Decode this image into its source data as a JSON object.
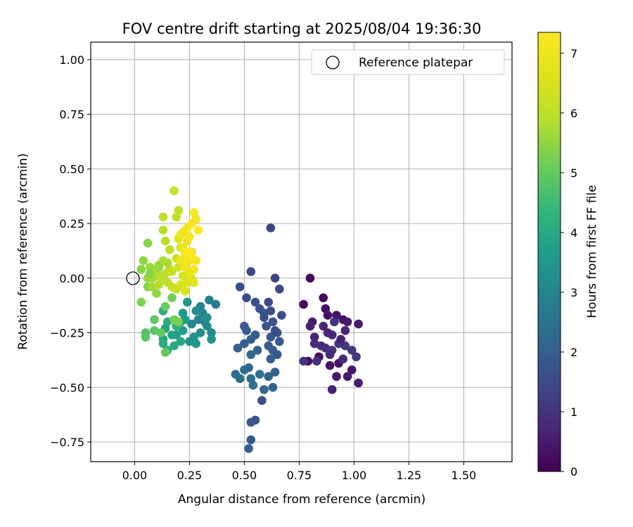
{
  "chart_data": {
    "type": "scatter",
    "title": "FOV centre drift starting at 2025/08/04 19:36:30",
    "xlabel": "Angular distance from reference (arcmin)",
    "ylabel": "Rotation from reference (arcmin)",
    "xlim": [
      -0.2,
      1.72
    ],
    "ylim": [
      -0.84,
      1.08
    ],
    "x_ticks": [
      0.0,
      0.25,
      0.5,
      0.75,
      1.0,
      1.25,
      1.5
    ],
    "x_tick_labels": [
      "0.00",
      "0.25",
      "0.50",
      "0.75",
      "1.00",
      "1.25",
      "1.50"
    ],
    "y_ticks": [
      1.0,
      0.75,
      0.5,
      0.25,
      0.0,
      -0.25,
      -0.5,
      -0.75
    ],
    "y_tick_labels": [
      "1.00",
      "0.75",
      "0.50",
      "0.25",
      "0.00",
      "−0.25",
      "−0.50",
      "−0.75"
    ],
    "grid": true,
    "legend": {
      "position": "top-right",
      "entries": [
        "Reference platepar"
      ]
    },
    "reference_point": {
      "label": "Reference platepar",
      "x": 0.0,
      "y": 0.0
    },
    "colorbar": {
      "label": "Hours from first FF file",
      "colormap": "viridis",
      "range": [
        0,
        7.35
      ],
      "ticks": [
        0,
        1,
        2,
        3,
        4,
        5,
        6,
        7
      ],
      "tick_labels": [
        "0",
        "1",
        "2",
        "3",
        "4",
        "5",
        "6",
        "7"
      ]
    },
    "points": [
      {
        "x": 0.8,
        "y": 0.0,
        "h": 0.1
      },
      {
        "x": 0.86,
        "y": -0.09,
        "h": 0.15
      },
      {
        "x": 0.77,
        "y": -0.12,
        "h": 0.2
      },
      {
        "x": 0.87,
        "y": -0.14,
        "h": 0.25
      },
      {
        "x": 0.88,
        "y": -0.17,
        "h": 0.3
      },
      {
        "x": 0.92,
        "y": -0.17,
        "h": 0.35
      },
      {
        "x": 0.95,
        "y": -0.19,
        "h": 0.4
      },
      {
        "x": 0.97,
        "y": -0.2,
        "h": 0.45
      },
      {
        "x": 1.02,
        "y": -0.21,
        "h": 0.5
      },
      {
        "x": 0.81,
        "y": -0.2,
        "h": 0.55
      },
      {
        "x": 0.8,
        "y": -0.22,
        "h": 0.6
      },
      {
        "x": 0.82,
        "y": -0.27,
        "h": 0.65
      },
      {
        "x": 0.88,
        "y": -0.25,
        "h": 0.7
      },
      {
        "x": 0.9,
        "y": -0.26,
        "h": 0.75
      },
      {
        "x": 0.82,
        "y": -0.3,
        "h": 0.8
      },
      {
        "x": 0.85,
        "y": -0.31,
        "h": 0.85
      },
      {
        "x": 0.87,
        "y": -0.32,
        "h": 0.9
      },
      {
        "x": 0.9,
        "y": -0.33,
        "h": 0.95
      },
      {
        "x": 0.93,
        "y": -0.3,
        "h": 1.0
      },
      {
        "x": 0.96,
        "y": -0.31,
        "h": 1.05
      },
      {
        "x": 0.99,
        "y": -0.33,
        "h": 1.1
      },
      {
        "x": 1.01,
        "y": -0.36,
        "h": 1.15
      },
      {
        "x": 0.84,
        "y": -0.36,
        "h": 0.2
      },
      {
        "x": 0.79,
        "y": -0.38,
        "h": 0.25
      },
      {
        "x": 0.89,
        "y": -0.4,
        "h": 0.3
      },
      {
        "x": 0.93,
        "y": -0.39,
        "h": 0.35
      },
      {
        "x": 0.99,
        "y": -0.42,
        "h": 0.4
      },
      {
        "x": 0.92,
        "y": -0.45,
        "h": 0.45
      },
      {
        "x": 0.97,
        "y": -0.45,
        "h": 0.5
      },
      {
        "x": 1.02,
        "y": -0.48,
        "h": 0.55
      },
      {
        "x": 0.9,
        "y": -0.51,
        "h": 0.6
      },
      {
        "x": 0.94,
        "y": -0.28,
        "h": 0.65
      },
      {
        "x": 0.96,
        "y": -0.24,
        "h": 0.7
      },
      {
        "x": 0.86,
        "y": -0.22,
        "h": 0.75
      },
      {
        "x": 0.89,
        "y": -0.35,
        "h": 0.8
      },
      {
        "x": 0.95,
        "y": -0.37,
        "h": 0.85
      },
      {
        "x": 0.83,
        "y": -0.38,
        "h": 0.9
      },
      {
        "x": 0.77,
        "y": -0.38,
        "h": 0.95
      },
      {
        "x": 0.91,
        "y": -0.2,
        "h": 1.0
      },
      {
        "x": 0.62,
        "y": 0.23,
        "h": 1.35
      },
      {
        "x": 0.64,
        "y": 0.0,
        "h": 1.4
      },
      {
        "x": 0.66,
        "y": -0.05,
        "h": 1.45
      },
      {
        "x": 0.61,
        "y": -0.11,
        "h": 1.5
      },
      {
        "x": 0.62,
        "y": -0.15,
        "h": 1.55
      },
      {
        "x": 0.67,
        "y": -0.17,
        "h": 1.6
      },
      {
        "x": 0.63,
        "y": -0.2,
        "h": 1.65
      },
      {
        "x": 0.6,
        "y": -0.22,
        "h": 1.7
      },
      {
        "x": 0.65,
        "y": -0.25,
        "h": 1.75
      },
      {
        "x": 0.62,
        "y": -0.27,
        "h": 1.8
      },
      {
        "x": 0.66,
        "y": -0.29,
        "h": 1.85
      },
      {
        "x": 0.61,
        "y": -0.31,
        "h": 1.9
      },
      {
        "x": 0.63,
        "y": -0.33,
        "h": 1.95
      },
      {
        "x": 0.62,
        "y": -0.37,
        "h": 2.0
      },
      {
        "x": 0.64,
        "y": -0.43,
        "h": 2.05
      },
      {
        "x": 0.61,
        "y": -0.45,
        "h": 2.1
      },
      {
        "x": 0.63,
        "y": -0.5,
        "h": 2.15
      },
      {
        "x": 0.59,
        "y": -0.51,
        "h": 2.2
      },
      {
        "x": 0.58,
        "y": -0.56,
        "h": 1.6
      },
      {
        "x": 0.55,
        "y": -0.65,
        "h": 1.7
      },
      {
        "x": 0.53,
        "y": -0.66,
        "h": 1.8
      },
      {
        "x": 0.53,
        "y": -0.74,
        "h": 1.9
      },
      {
        "x": 0.52,
        "y": -0.78,
        "h": 2.0
      },
      {
        "x": 0.53,
        "y": 0.03,
        "h": 1.5
      },
      {
        "x": 0.48,
        "y": -0.04,
        "h": 1.55
      },
      {
        "x": 0.51,
        "y": -0.09,
        "h": 1.6
      },
      {
        "x": 0.55,
        "y": -0.11,
        "h": 1.65
      },
      {
        "x": 0.57,
        "y": -0.14,
        "h": 1.7
      },
      {
        "x": 0.59,
        "y": -0.16,
        "h": 1.75
      },
      {
        "x": 0.5,
        "y": -0.22,
        "h": 1.8
      },
      {
        "x": 0.51,
        "y": -0.24,
        "h": 1.85
      },
      {
        "x": 0.55,
        "y": -0.26,
        "h": 1.9
      },
      {
        "x": 0.53,
        "y": -0.28,
        "h": 1.95
      },
      {
        "x": 0.5,
        "y": -0.3,
        "h": 2.0
      },
      {
        "x": 0.47,
        "y": -0.32,
        "h": 2.05
      },
      {
        "x": 0.56,
        "y": -0.33,
        "h": 2.1
      },
      {
        "x": 0.53,
        "y": -0.35,
        "h": 2.15
      },
      {
        "x": 0.52,
        "y": -0.41,
        "h": 2.2
      },
      {
        "x": 0.5,
        "y": -0.42,
        "h": 2.25
      },
      {
        "x": 0.46,
        "y": -0.44,
        "h": 2.3
      },
      {
        "x": 0.48,
        "y": -0.46,
        "h": 2.35
      },
      {
        "x": 0.53,
        "y": -0.46,
        "h": 2.4
      },
      {
        "x": 0.57,
        "y": -0.44,
        "h": 2.45
      },
      {
        "x": 0.54,
        "y": -0.49,
        "h": 2.5
      },
      {
        "x": 0.64,
        "y": -0.24,
        "h": 1.55
      },
      {
        "x": 0.59,
        "y": -0.18,
        "h": 1.65
      },
      {
        "x": 0.65,
        "y": -0.35,
        "h": 1.75
      },
      {
        "x": 0.37,
        "y": -0.12,
        "h": 2.8
      },
      {
        "x": 0.34,
        "y": -0.1,
        "h": 2.85
      },
      {
        "x": 0.3,
        "y": -0.13,
        "h": 2.9
      },
      {
        "x": 0.31,
        "y": -0.16,
        "h": 2.95
      },
      {
        "x": 0.29,
        "y": -0.19,
        "h": 3.0
      },
      {
        "x": 0.32,
        "y": -0.2,
        "h": 3.05
      },
      {
        "x": 0.26,
        "y": -0.21,
        "h": 3.1
      },
      {
        "x": 0.33,
        "y": -0.22,
        "h": 3.15
      },
      {
        "x": 0.35,
        "y": -0.25,
        "h": 3.2
      },
      {
        "x": 0.3,
        "y": -0.25,
        "h": 3.25
      },
      {
        "x": 0.27,
        "y": -0.27,
        "h": 3.3
      },
      {
        "x": 0.25,
        "y": -0.29,
        "h": 3.35
      },
      {
        "x": 0.35,
        "y": -0.28,
        "h": 3.4
      },
      {
        "x": 0.28,
        "y": -0.3,
        "h": 3.45
      },
      {
        "x": 0.24,
        "y": -0.11,
        "h": 3.5
      },
      {
        "x": 0.22,
        "y": -0.16,
        "h": 3.55
      },
      {
        "x": 0.23,
        "y": -0.19,
        "h": 3.6
      },
      {
        "x": 0.21,
        "y": -0.2,
        "h": 3.65
      },
      {
        "x": 0.22,
        "y": -0.24,
        "h": 3.7
      },
      {
        "x": 0.19,
        "y": -0.26,
        "h": 3.75
      },
      {
        "x": 0.17,
        "y": -0.26,
        "h": 3.8
      },
      {
        "x": 0.14,
        "y": -0.23,
        "h": 3.85
      },
      {
        "x": 0.13,
        "y": -0.28,
        "h": 3.9
      },
      {
        "x": 0.21,
        "y": -0.29,
        "h": 3.95
      },
      {
        "x": 0.18,
        "y": -0.31,
        "h": 4.0
      },
      {
        "x": 0.13,
        "y": -0.15,
        "h": 4.05
      },
      {
        "x": 0.15,
        "y": -0.2,
        "h": 4.1
      },
      {
        "x": 0.13,
        "y": -0.3,
        "h": 4.15
      },
      {
        "x": 0.15,
        "y": -0.33,
        "h": 4.2
      },
      {
        "x": 0.19,
        "y": -0.22,
        "h": 4.25
      },
      {
        "x": 0.28,
        "y": -0.15,
        "h": 3.2
      },
      {
        "x": 0.33,
        "y": -0.18,
        "h": 3.3
      },
      {
        "x": 0.05,
        "y": -0.25,
        "h": 4.8
      },
      {
        "x": 0.05,
        "y": -0.27,
        "h": 4.85
      },
      {
        "x": 0.09,
        "y": -0.24,
        "h": 4.9
      },
      {
        "x": 0.09,
        "y": -0.19,
        "h": 4.95
      },
      {
        "x": 0.12,
        "y": -0.25,
        "h": 5.0
      },
      {
        "x": 0.14,
        "y": -0.34,
        "h": 5.05
      },
      {
        "x": 0.14,
        "y": -0.13,
        "h": 5.1
      },
      {
        "x": 0.17,
        "y": -0.09,
        "h": 5.15
      },
      {
        "x": 0.18,
        "y": -0.19,
        "h": 5.2
      },
      {
        "x": 0.2,
        "y": -0.2,
        "h": 5.25
      },
      {
        "x": 0.03,
        "y": -0.11,
        "h": 5.3
      },
      {
        "x": 0.06,
        "y": -0.04,
        "h": 5.35
      },
      {
        "x": 0.06,
        "y": 0.16,
        "h": 5.4
      },
      {
        "x": 0.03,
        "y": 0.04,
        "h": 5.45
      },
      {
        "x": 0.04,
        "y": 0.08,
        "h": 5.5
      },
      {
        "x": 0.07,
        "y": 0.05,
        "h": 5.55
      },
      {
        "x": 0.08,
        "y": 0.0,
        "h": 5.6
      },
      {
        "x": 0.1,
        "y": 0.03,
        "h": 5.65
      },
      {
        "x": 0.11,
        "y": 0.06,
        "h": 5.7
      },
      {
        "x": 0.13,
        "y": 0.08,
        "h": 5.75
      },
      {
        "x": 0.15,
        "y": 0.07,
        "h": 5.8
      },
      {
        "x": 0.16,
        "y": 0.04,
        "h": 5.85
      },
      {
        "x": 0.13,
        "y": 0.22,
        "h": 5.9
      },
      {
        "x": 0.14,
        "y": 0.17,
        "h": 5.95
      },
      {
        "x": 0.16,
        "y": 0.13,
        "h": 6.0
      },
      {
        "x": 0.13,
        "y": 0.28,
        "h": 6.05
      },
      {
        "x": 0.19,
        "y": 0.28,
        "h": 6.1
      },
      {
        "x": 0.2,
        "y": 0.31,
        "h": 6.15
      },
      {
        "x": 0.18,
        "y": 0.4,
        "h": 6.2
      },
      {
        "x": 0.06,
        "y": 0.0,
        "h": 5.6
      },
      {
        "x": 0.08,
        "y": -0.04,
        "h": 5.7
      },
      {
        "x": 0.09,
        "y": 0.02,
        "h": 5.8
      },
      {
        "x": 0.11,
        "y": -0.03,
        "h": 5.9
      },
      {
        "x": 0.12,
        "y": 0.0,
        "h": 6.0
      },
      {
        "x": 0.14,
        "y": 0.02,
        "h": 6.05
      },
      {
        "x": 0.15,
        "y": -0.02,
        "h": 6.1
      },
      {
        "x": 0.17,
        "y": -0.04,
        "h": 6.15
      },
      {
        "x": 0.19,
        "y": -0.05,
        "h": 6.2
      },
      {
        "x": 0.17,
        "y": 0.03,
        "h": 6.25
      },
      {
        "x": 0.19,
        "y": 0.09,
        "h": 6.3
      },
      {
        "x": 0.21,
        "y": 0.14,
        "h": 6.35
      },
      {
        "x": 0.2,
        "y": 0.05,
        "h": 6.4
      },
      {
        "x": 0.22,
        "y": 0.01,
        "h": 6.45
      },
      {
        "x": 0.21,
        "y": -0.03,
        "h": 6.5
      },
      {
        "x": 0.24,
        "y": -0.02,
        "h": 6.55
      },
      {
        "x": 0.23,
        "y": -0.06,
        "h": 6.6
      },
      {
        "x": 0.26,
        "y": 0.0,
        "h": 6.65
      },
      {
        "x": 0.1,
        "y": -0.07,
        "h": 5.5
      },
      {
        "x": 0.07,
        "y": 0.02,
        "h": 5.4
      },
      {
        "x": 0.11,
        "y": 0.05,
        "h": 5.55
      },
      {
        "x": 0.2,
        "y": 0.18,
        "h": 6.7
      },
      {
        "x": 0.22,
        "y": 0.21,
        "h": 6.8
      },
      {
        "x": 0.24,
        "y": 0.17,
        "h": 6.9
      },
      {
        "x": 0.26,
        "y": 0.12,
        "h": 7.0
      },
      {
        "x": 0.25,
        "y": 0.08,
        "h": 7.05
      },
      {
        "x": 0.23,
        "y": 0.05,
        "h": 7.1
      },
      {
        "x": 0.27,
        "y": 0.04,
        "h": 7.15
      },
      {
        "x": 0.28,
        "y": 0.08,
        "h": 7.2
      },
      {
        "x": 0.24,
        "y": 0.23,
        "h": 7.2
      },
      {
        "x": 0.26,
        "y": 0.25,
        "h": 7.25
      },
      {
        "x": 0.27,
        "y": 0.3,
        "h": 7.3
      },
      {
        "x": 0.28,
        "y": 0.27,
        "h": 7.1
      },
      {
        "x": 0.22,
        "y": 0.14,
        "h": 6.95
      },
      {
        "x": 0.25,
        "y": 0.02,
        "h": 6.85
      },
      {
        "x": 0.27,
        "y": -0.02,
        "h": 6.75
      },
      {
        "x": 0.23,
        "y": 0.11,
        "h": 7.15
      },
      {
        "x": 0.21,
        "y": 0.2,
        "h": 7.05
      },
      {
        "x": 0.25,
        "y": 0.19,
        "h": 7.25
      },
      {
        "x": 0.29,
        "y": 0.22,
        "h": 7.3
      },
      {
        "x": 0.26,
        "y": 0.1,
        "h": 7.35
      },
      {
        "x": 0.21,
        "y": 0.08,
        "h": 7.0
      },
      {
        "x": 0.24,
        "y": 0.12,
        "h": 7.3
      }
    ]
  }
}
